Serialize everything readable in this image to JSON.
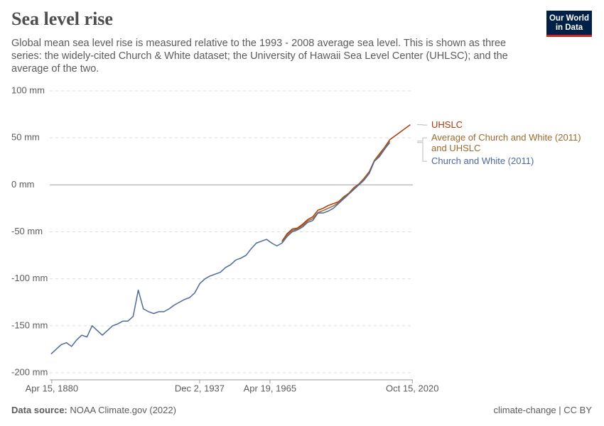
{
  "logo": "Our World in Data",
  "source_label": "Data source:",
  "source": "NOAA Climate.gov (2022)",
  "footer_right": "climate-change | CC BY",
  "chart_data": {
    "type": "line",
    "title": "Sea level rise",
    "subtitle": "Global mean sea level rise is measured relative to the 1993 - 2008 average sea level. This is shown as three series: the widely-cited Church & White dataset; the University of Hawaii Sea Level Center (UHLSC); and the average of the two.",
    "x": [
      1880,
      1882,
      1884,
      1886,
      1888,
      1890,
      1892,
      1894,
      1896,
      1898,
      1900,
      1902,
      1904,
      1906,
      1908,
      1910,
      1912,
      1914,
      1916,
      1918,
      1920,
      1922,
      1924,
      1926,
      1928,
      1930,
      1932,
      1934,
      1936,
      1938,
      1940,
      1942,
      1944,
      1946,
      1948,
      1950,
      1952,
      1954,
      1956,
      1958,
      1960,
      1962,
      1964,
      1966,
      1968,
      1970,
      1972,
      1974,
      1976,
      1978,
      1980,
      1982,
      1984,
      1986,
      1988,
      1990,
      1992,
      1994,
      1996,
      1998,
      2000,
      2002,
      2004,
      2006,
      2008,
      2010,
      2012,
      2014,
      2016,
      2018,
      2020
    ],
    "xlim": [
      1879.5,
      2021
    ],
    "xticks": [
      {
        "value": 1880.29,
        "label": "Apr 15, 1880"
      },
      {
        "value": 1937.92,
        "label": "Dec 2, 1937"
      },
      {
        "value": 1965.3,
        "label": "Apr 19, 1965"
      },
      {
        "value": 2020.79,
        "label": "Oct 15, 2020"
      }
    ],
    "ylim": [
      -200,
      100
    ],
    "yticks": [
      {
        "value": -200,
        "label": "-200 mm"
      },
      {
        "value": -150,
        "label": "-150 mm"
      },
      {
        "value": -100,
        "label": "-100 mm"
      },
      {
        "value": -50,
        "label": "-50 mm"
      },
      {
        "value": 0,
        "label": "0 mm"
      },
      {
        "value": 50,
        "label": "50 mm"
      },
      {
        "value": 100,
        "label": "100 mm"
      }
    ],
    "grid": true,
    "series": [
      {
        "name": "UHSLC",
        "color": "#b13507",
        "values": [
          null,
          null,
          null,
          null,
          null,
          null,
          null,
          null,
          null,
          null,
          null,
          null,
          null,
          null,
          null,
          null,
          null,
          null,
          null,
          null,
          null,
          null,
          null,
          null,
          null,
          null,
          null,
          null,
          null,
          null,
          null,
          null,
          null,
          null,
          null,
          null,
          null,
          null,
          null,
          null,
          null,
          null,
          null,
          null,
          null,
          -60,
          -52,
          -47,
          -46,
          -42,
          -37,
          -34,
          -27,
          -25,
          -22,
          -20,
          -18,
          -13,
          -9,
          -3,
          1,
          7,
          14,
          26,
          33,
          40,
          48,
          52,
          56,
          60,
          64
        ]
      },
      {
        "name": "Average of Church and White (2011) and UHSLC",
        "color": "#9a6b2c",
        "values": [
          null,
          null,
          null,
          null,
          null,
          null,
          null,
          null,
          null,
          null,
          null,
          null,
          null,
          null,
          null,
          null,
          null,
          null,
          null,
          null,
          null,
          null,
          null,
          null,
          null,
          null,
          null,
          null,
          null,
          null,
          null,
          null,
          null,
          null,
          null,
          null,
          null,
          null,
          null,
          null,
          null,
          null,
          null,
          null,
          null,
          -61,
          -53.5,
          -48.5,
          -47,
          -43.5,
          -38.5,
          -36,
          -29.5,
          -27.5,
          -25,
          -22.5,
          -19,
          -14,
          -9.5,
          -4,
          0.5,
          6,
          13,
          25.5,
          31.5,
          39,
          46.5,
          null,
          null,
          null,
          null
        ]
      },
      {
        "name": "Church and White (2011)",
        "color": "#4c6a9c",
        "values": [
          -180,
          -175,
          -170,
          -168,
          -172,
          -165,
          -160,
          -162,
          -150,
          -155,
          -160,
          -155,
          -150,
          -148,
          -145,
          -145,
          -140,
          -112,
          -132,
          -135,
          -137,
          -135,
          -135,
          -132,
          -128,
          -125,
          -122,
          -120,
          -115,
          -105,
          -100,
          -97,
          -95,
          -93,
          -88,
          -85,
          -80,
          -78,
          -75,
          -68,
          -62,
          -60,
          -58,
          -62,
          -65,
          -62,
          -55,
          -50,
          -48,
          -45,
          -40,
          -38,
          -30,
          -30,
          -28,
          -25,
          -20,
          -15,
          -10,
          -5,
          0,
          5,
          12,
          25,
          30,
          38,
          45,
          null,
          null,
          null,
          null
        ]
      }
    ]
  }
}
